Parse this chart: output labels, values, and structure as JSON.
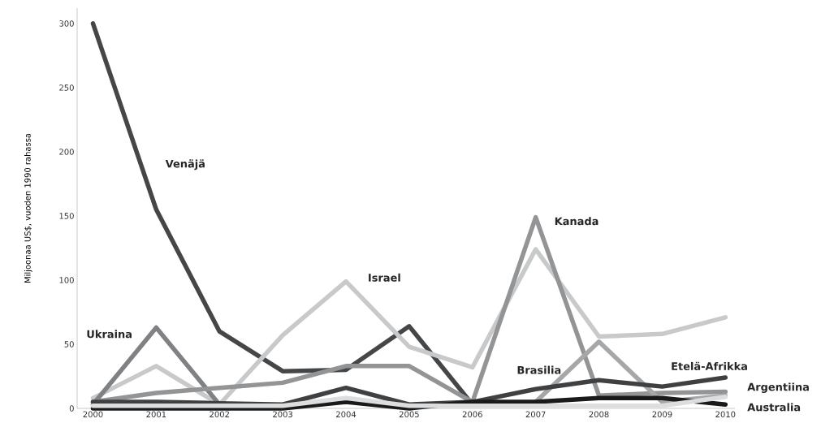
{
  "chart_data": {
    "type": "line",
    "ylabel": "Miljoonaa US$, vuoden 1990 rahassa",
    "x": [
      2000,
      2001,
      2002,
      2003,
      2004,
      2005,
      2006,
      2007,
      2008,
      2009,
      2010
    ],
    "xlim": [
      1999.75,
      2010.15
    ],
    "xticks": [
      2000,
      2001,
      2002,
      2003,
      2004,
      2005,
      2006,
      2007,
      2008,
      2009,
      2010
    ],
    "ylim": [
      0,
      312
    ],
    "yticks": [
      0,
      50,
      100,
      150,
      200,
      250,
      300
    ],
    "grid": false,
    "legend": false,
    "marker": "none",
    "line_style": "solid",
    "series": [
      {
        "name": "Venäjä",
        "color": "#454648",
        "values": [
          300,
          155,
          60,
          29,
          30,
          64,
          3,
          null,
          null,
          null,
          null
        ]
      },
      {
        "name": "Israel",
        "color": "#c8c9ca",
        "values": [
          8,
          33,
          3,
          57,
          99,
          48,
          32,
          124,
          56,
          58,
          71
        ]
      },
      {
        "name": "Ukraina",
        "color": "#808184",
        "values": [
          3,
          63,
          3,
          null,
          null,
          null,
          null,
          null,
          null,
          null,
          null
        ]
      },
      {
        "name": "Kanada",
        "color": "#939496",
        "values": [
          5,
          12,
          16,
          20,
          33,
          33,
          5,
          149,
          10,
          12,
          13
        ]
      },
      {
        "name": "Brasilia",
        "color": "#a6a7a9",
        "values": [
          null,
          null,
          null,
          null,
          null,
          null,
          null,
          5,
          52,
          5,
          10
        ]
      },
      {
        "name": "Etelä-Afrikka",
        "color": "#3f4042",
        "values": [
          5,
          5,
          4,
          3,
          16,
          3,
          5,
          15,
          22,
          17,
          24
        ]
      },
      {
        "name": "Australia",
        "color": "#1a1a1a",
        "values": [
          0,
          0,
          0,
          0,
          5,
          0,
          5,
          5,
          8,
          8,
          3
        ]
      },
      {
        "name": "Argentiina",
        "color": "#dcdddf",
        "values": [
          2,
          2,
          2,
          2,
          8,
          2,
          2,
          2,
          2,
          2,
          9
        ]
      }
    ]
  }
}
